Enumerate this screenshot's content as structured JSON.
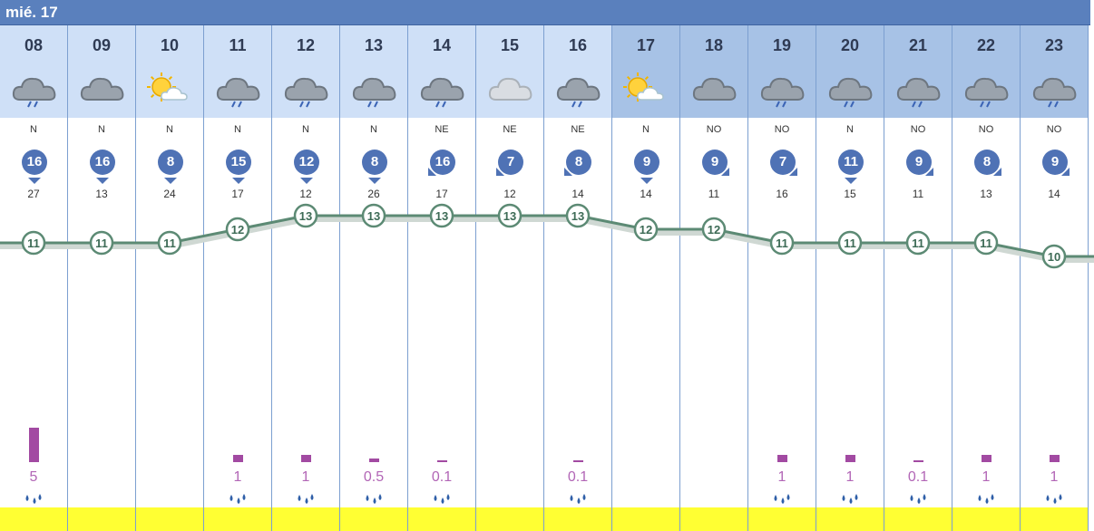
{
  "day_label": "mié. 17",
  "colors": {
    "header_light": "#cfe0f7",
    "header_dark": "#a7c2e6",
    "wind_circle": "#4f72b5",
    "temp_line": "#5c8a74",
    "rain_bar": "#a24aa2",
    "bottom_band": "#ffff33"
  },
  "hours": [
    {
      "hour": "08",
      "icon": "rain-cloud-icon",
      "dir": "N",
      "wind": "16",
      "gust": "27",
      "temp": "11",
      "rain": "5",
      "rain_mm": 5
    },
    {
      "hour": "09",
      "icon": "cloud-icon",
      "dir": "N",
      "wind": "16",
      "gust": "13",
      "temp": "11",
      "rain": "",
      "rain_mm": 0
    },
    {
      "hour": "10",
      "icon": "sun-cloud-icon",
      "dir": "N",
      "wind": "8",
      "gust": "24",
      "temp": "11",
      "rain": "",
      "rain_mm": 0
    },
    {
      "hour": "11",
      "icon": "rain-cloud-icon",
      "dir": "N",
      "wind": "15",
      "gust": "17",
      "temp": "12",
      "rain": "1",
      "rain_mm": 1
    },
    {
      "hour": "12",
      "icon": "rain-cloud-icon",
      "dir": "N",
      "wind": "12",
      "gust": "12",
      "temp": "13",
      "rain": "1",
      "rain_mm": 1
    },
    {
      "hour": "13",
      "icon": "rain-cloud-icon",
      "dir": "N",
      "wind": "8",
      "gust": "26",
      "temp": "13",
      "rain": "0.5",
      "rain_mm": 0.5
    },
    {
      "hour": "14",
      "icon": "rain-cloud-icon",
      "dir": "NE",
      "wind": "16",
      "gust": "17",
      "temp": "13",
      "rain": "0.1",
      "rain_mm": 0.1
    },
    {
      "hour": "15",
      "icon": "light-cloud-icon",
      "dir": "NE",
      "wind": "7",
      "gust": "12",
      "temp": "13",
      "rain": "",
      "rain_mm": 0
    },
    {
      "hour": "16",
      "icon": "rain-cloud-icon",
      "dir": "NE",
      "wind": "8",
      "gust": "14",
      "temp": "13",
      "rain": "0.1",
      "rain_mm": 0.1
    },
    {
      "hour": "17",
      "icon": "sun-cloud-icon",
      "dir": "N",
      "wind": "9",
      "gust": "14",
      "temp": "12",
      "rain": "",
      "rain_mm": 0
    },
    {
      "hour": "18",
      "icon": "cloud-icon",
      "dir": "NO",
      "wind": "9",
      "gust": "11",
      "temp": "12",
      "rain": "",
      "rain_mm": 0
    },
    {
      "hour": "19",
      "icon": "rain-cloud-icon",
      "dir": "NO",
      "wind": "7",
      "gust": "16",
      "temp": "11",
      "rain": "1",
      "rain_mm": 1
    },
    {
      "hour": "20",
      "icon": "rain-cloud-icon",
      "dir": "N",
      "wind": "11",
      "gust": "15",
      "temp": "11",
      "rain": "1",
      "rain_mm": 1
    },
    {
      "hour": "21",
      "icon": "rain-cloud-icon",
      "dir": "NO",
      "wind": "9",
      "gust": "11",
      "temp": "11",
      "rain": "0.1",
      "rain_mm": 0.1
    },
    {
      "hour": "22",
      "icon": "rain-cloud-icon",
      "dir": "NO",
      "wind": "8",
      "gust": "13",
      "temp": "11",
      "rain": "1",
      "rain_mm": 1
    },
    {
      "hour": "23",
      "icon": "rain-cloud-icon",
      "dir": "NO",
      "wind": "9",
      "gust": "14",
      "temp": "10",
      "rain": "1",
      "rain_mm": 1
    }
  ]
}
